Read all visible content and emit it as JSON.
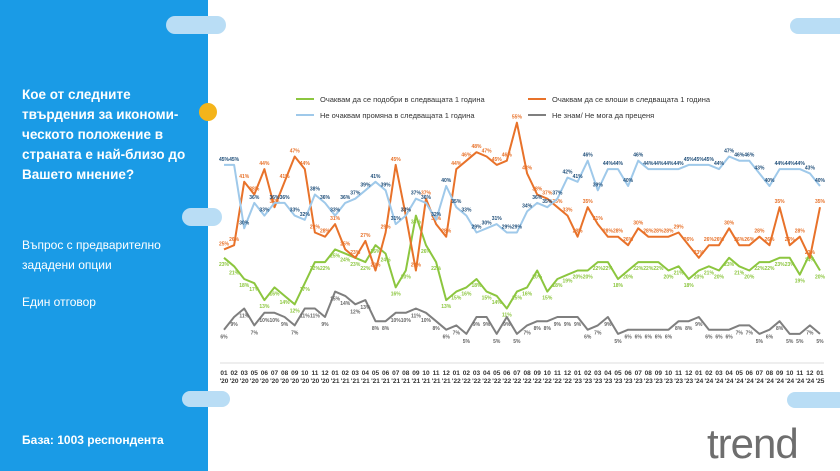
{
  "sidebar": {
    "question": "Кое от следните твърдения за икономи-ческото положение в страната е най-близо до Вашето мнение?",
    "question_lines": [
      "Кое от следните",
      "твърдения за икономи-",
      "ческото положение в",
      "страната е най-близо до",
      "Вашето мнение?"
    ],
    "note1_lines": [
      "Въпрос с предварително",
      "зададени опции"
    ],
    "note2": "Един отговор",
    "base": "База:  1003 респондента"
  },
  "logo": {
    "text": "trend"
  },
  "colors": {
    "sidebar_bg": "#1a9be6",
    "accent_yellow": "#f4b41a",
    "green": "#8cc63f",
    "orange": "#e8722a",
    "lightblue": "#9fc9ea",
    "gray": "#7f7f7f"
  },
  "chart_data": {
    "type": "line",
    "x": [
      "01 '20",
      "02 '20",
      "03 '20",
      "05 '20",
      "06 '20",
      "07 '20",
      "08 '20",
      "09 '20",
      "10 '20",
      "11 '20",
      "12 '20",
      "01 '21",
      "02 '21",
      "03 '21",
      "04 '21",
      "05 '21",
      "06 '21",
      "07 '21",
      "08 '21",
      "09 '21",
      "10 '21",
      "11 '21",
      "12 '21",
      "01 '22",
      "02 '22",
      "03 '22",
      "04 '22",
      "05 '22",
      "06 '22",
      "07 '22",
      "08 '22",
      "09 '22",
      "10 '22",
      "11 '22",
      "12 '22",
      "01 '23",
      "02 '23",
      "03 '23",
      "04 '23",
      "05 '23",
      "06 '23",
      "07 '23",
      "08 '23",
      "09 '23",
      "10 '23",
      "11 '23",
      "12 '23",
      "01 '24",
      "02 '24",
      "03 '24",
      "04 '24",
      "05 '24",
      "06 '24",
      "07 '24",
      "08 '24",
      "09 '24",
      "10 '24",
      "11 '24",
      "12 '24",
      "01 '25"
    ],
    "x_tick_labels": [
      [
        "01",
        "'20"
      ],
      [
        "02",
        "'20"
      ],
      [
        "03",
        "'20"
      ],
      [
        "05",
        "'20"
      ],
      [
        "06",
        "'20"
      ],
      [
        "07",
        "'20"
      ],
      [
        "08",
        "'20"
      ],
      [
        "09",
        "'20"
      ],
      [
        "10",
        "'20"
      ],
      [
        "11",
        "'20"
      ],
      [
        "12",
        "'20"
      ],
      [
        "01",
        "'21"
      ],
      [
        "02",
        "'21"
      ],
      [
        "03",
        "'21"
      ],
      [
        "04",
        "'21"
      ],
      [
        "05",
        "'21"
      ],
      [
        "06",
        "'21"
      ],
      [
        "07",
        "'21"
      ],
      [
        "08",
        "'21"
      ],
      [
        "09",
        "'21"
      ],
      [
        "10",
        "'21"
      ],
      [
        "11",
        "'21"
      ],
      [
        "12",
        "'21"
      ],
      [
        "01",
        "'22"
      ],
      [
        "02",
        "'22"
      ],
      [
        "03",
        "'22"
      ],
      [
        "04",
        "'22"
      ],
      [
        "05",
        "'22"
      ],
      [
        "06",
        "'22"
      ],
      [
        "07",
        "'22"
      ],
      [
        "08",
        "'22"
      ],
      [
        "09",
        "'22"
      ],
      [
        "10",
        "'22"
      ],
      [
        "11",
        "'22"
      ],
      [
        "12",
        "'22"
      ],
      [
        "01",
        "'23"
      ],
      [
        "02",
        "'23"
      ],
      [
        "03",
        "'23"
      ],
      [
        "04",
        "'23"
      ],
      [
        "05",
        "'23"
      ],
      [
        "06",
        "'23"
      ],
      [
        "07",
        "'23"
      ],
      [
        "08",
        "'23"
      ],
      [
        "09",
        "'23"
      ],
      [
        "10",
        "'23"
      ],
      [
        "11",
        "'23"
      ],
      [
        "12",
        "'23"
      ],
      [
        "01",
        "'24"
      ],
      [
        "02",
        "'24"
      ],
      [
        "03",
        "'24"
      ],
      [
        "04",
        "'24"
      ],
      [
        "05",
        "'24"
      ],
      [
        "06",
        "'24"
      ],
      [
        "07",
        "'24"
      ],
      [
        "08",
        "'24"
      ],
      [
        "09",
        "'24"
      ],
      [
        "10",
        "'24"
      ],
      [
        "11",
        "'24"
      ],
      [
        "12",
        "'24"
      ],
      [
        "01",
        "'25"
      ]
    ],
    "ylim": [
      0,
      58
    ],
    "legend_position": "top",
    "series": [
      {
        "name": "Очаквам да се подобри в следващата 1 година",
        "color": "#8cc63f",
        "values": [
          23,
          21,
          18,
          17,
          13,
          16,
          14,
          12,
          17,
          22,
          22,
          25,
          24,
          23,
          22,
          26,
          24,
          16,
          20,
          33,
          26,
          22,
          13,
          15,
          16,
          18,
          15,
          14,
          11,
          15,
          16,
          20,
          15,
          18,
          19,
          20,
          20,
          22,
          22,
          18,
          20,
          22,
          22,
          22,
          20,
          21,
          18,
          20,
          21,
          20,
          23,
          21,
          20,
          22,
          22,
          23,
          23,
          19,
          24,
          20
        ],
        "labels": [
          "23%",
          "21%",
          "18%",
          "17%",
          "13%",
          "16%",
          "14%",
          "12%",
          "17%",
          "22%",
          "22%",
          "25%",
          "24%",
          "23%",
          "22%",
          "26%",
          "24%",
          "16%",
          "20%",
          "33%",
          "26%",
          "22%",
          "13%",
          "15%",
          "16%",
          "18%",
          "15%",
          "14%",
          "11%",
          "15%",
          "16%",
          "20%",
          "15%",
          "18%",
          "19%",
          "20%",
          "20%",
          "22%",
          "22%",
          "18%",
          "20%",
          "22%",
          "22%",
          "22%",
          "20%",
          "21%",
          "18%",
          "20%",
          "21%",
          "20%",
          "23%",
          "21%",
          "20%",
          "22%",
          "22%",
          "23%",
          "23%",
          "19%",
          "24%",
          "20%"
        ]
      },
      {
        "name": "Очаквам да се влоши в следващата 1 година",
        "color": "#e8722a",
        "values": [
          25,
          26,
          41,
          38,
          44,
          35,
          41,
          47,
          44,
          29,
          28,
          31,
          25,
          23,
          27,
          20,
          29,
          45,
          33,
          20,
          37,
          31,
          28,
          44,
          46,
          48,
          47,
          45,
          46,
          55,
          43,
          38,
          37,
          35,
          33,
          28,
          35,
          31,
          28,
          28,
          26,
          30,
          28,
          28,
          28,
          29,
          26,
          23,
          26,
          26,
          30,
          26,
          26,
          28,
          26,
          35,
          26,
          28,
          23,
          35
        ],
        "labels": [
          "25%",
          "26%",
          "41%",
          "38%",
          "44%",
          "35%",
          "41%",
          "47%",
          "44%",
          "29%",
          "28%",
          "31%",
          "25%",
          "23%",
          "27%",
          "20%",
          "29%",
          "45%",
          "33%",
          "20%",
          "37%",
          "31%",
          "28%",
          "44%",
          "46%",
          "48%",
          "47%",
          "45%",
          "46%",
          "55%",
          "43%",
          "38%",
          "37%",
          "35%",
          "33%",
          "28%",
          "35%",
          "31%",
          "28%",
          "28%",
          "26%",
          "30%",
          "28%",
          "28%",
          "28%",
          "29%",
          "26%",
          "23%",
          "26%",
          "26%",
          "30%",
          "26%",
          "26%",
          "28%",
          "26%",
          "35%",
          "26%",
          "28%",
          "23%",
          "35%"
        ]
      },
      {
        "name": "Не очаквам промяна в следващата 1 година",
        "color": "#9fc9ea",
        "values": [
          45,
          45,
          30,
          36,
          33,
          36,
          36,
          33,
          32,
          38,
          36,
          33,
          36,
          37,
          39,
          41,
          39,
          31,
          33,
          37,
          36,
          32,
          40,
          35,
          33,
          29,
          30,
          31,
          29,
          29,
          34,
          36,
          35,
          37,
          42,
          41,
          46,
          39,
          44,
          44,
          40,
          46,
          44,
          44,
          44,
          44,
          45,
          45,
          45,
          44,
          47,
          46,
          46,
          43,
          40,
          44,
          44,
          44,
          43,
          40
        ],
        "labels": [
          "45%",
          "45%",
          "30%",
          "36%",
          "33%",
          "36%",
          "36%",
          "33%",
          "32%",
          "38%",
          "36%",
          "33%",
          "36%",
          "37%",
          "39%",
          "41%",
          "39%",
          "31%",
          "33%",
          "37%",
          "36%",
          "32%",
          "40%",
          "35%",
          "33%",
          "29%",
          "30%",
          "31%",
          "29%",
          "29%",
          "34%",
          "36%",
          "35%",
          "37%",
          "42%",
          "41%",
          "46%",
          "39%",
          "44%",
          "44%",
          "40%",
          "46%",
          "44%",
          "44%",
          "44%",
          "44%",
          "45%",
          "45%",
          "45%",
          "44%",
          "47%",
          "46%",
          "46%",
          "43%",
          "40%",
          "44%",
          "44%",
          "44%",
          "43%",
          "40%"
        ]
      },
      {
        "name": "Не знам/ Не мога да преценя",
        "color": "#7f7f7f",
        "values": [
          6,
          9,
          11,
          7,
          10,
          10,
          9,
          7,
          11,
          11,
          9,
          15,
          14,
          12,
          13,
          8,
          8,
          10,
          10,
          11,
          10,
          8,
          6,
          7,
          5,
          9,
          9,
          5,
          9,
          5,
          7,
          8,
          8,
          9,
          9,
          9,
          6,
          7,
          9,
          5,
          6,
          6,
          6,
          6,
          6,
          8,
          8,
          9,
          6,
          6,
          6,
          7,
          7,
          5,
          6,
          8,
          5,
          5,
          7,
          5
        ],
        "labels": [
          "6%",
          "9%",
          "11%",
          "7%",
          "10%",
          "10%",
          "9%",
          "7%",
          "11%",
          "11%",
          "9%",
          "15%",
          "14%",
          "12%",
          "13%",
          "8%",
          "8%",
          "10%",
          "10%",
          "11%",
          "10%",
          "8%",
          "6%",
          "7%",
          "5%",
          "9%",
          "9%",
          "5%",
          "9%",
          "5%",
          "7%",
          "8%",
          "8%",
          "9%",
          "9%",
          "9%",
          "6%",
          "7%",
          "9%",
          "5%",
          "6%",
          "6%",
          "6%",
          "6%",
          "6%",
          "8%",
          "8%",
          "9%",
          "6%",
          "6%",
          "6%",
          "7%",
          "7%",
          "5%",
          "6%",
          "8%",
          "5%",
          "5%",
          "7%",
          "5%"
        ]
      }
    ]
  }
}
